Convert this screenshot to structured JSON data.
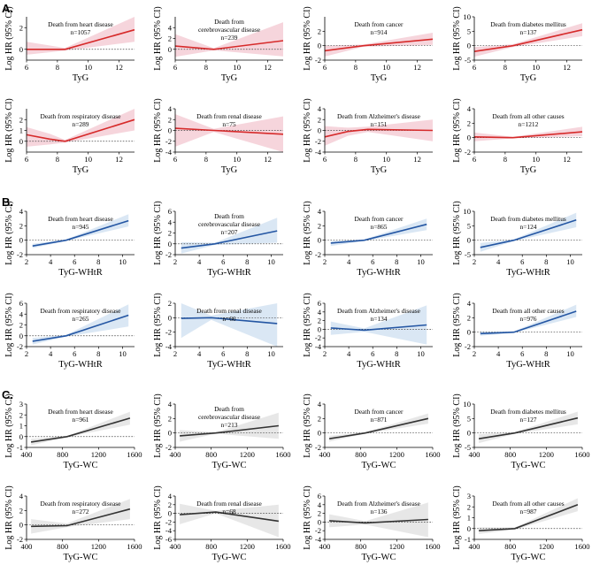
{
  "figure": {
    "section_labels": [
      "A.",
      "B.",
      "C."
    ],
    "y_label": "Log HR (95% CI)"
  },
  "chart_data": [
    {
      "section": "A.",
      "type": "line",
      "x_label": "TyG",
      "xlim": [
        6,
        13
      ],
      "x_ticks": [
        6,
        8,
        10,
        12
      ],
      "line_color": "#d62a2a",
      "band_color": "#f6d3da",
      "panels": [
        {
          "title": [
            "Death from heart disease",
            "n=1057"
          ],
          "ylim": [
            -1,
            3
          ],
          "y_ticks": [
            0,
            2
          ],
          "x": [
            6,
            8.5,
            13
          ],
          "y": [
            0,
            0,
            1.8
          ],
          "lower": [
            -0.5,
            -0.12,
            0.7
          ],
          "upper": [
            0.7,
            0.12,
            3.0
          ]
        },
        {
          "title": [
            "Death from",
            "cerebrovascular disease",
            "n=239"
          ],
          "ylim": [
            -2,
            6
          ],
          "y_ticks": [
            0,
            2,
            4
          ],
          "x": [
            6,
            8.5,
            13
          ],
          "y": [
            0.6,
            0,
            1.6
          ],
          "lower": [
            -1.4,
            -0.2,
            -1.3
          ],
          "upper": [
            2.8,
            0.2,
            5.0
          ]
        },
        {
          "title": [
            "Death from cancer",
            "n=914"
          ],
          "ylim": [
            -2,
            4
          ],
          "y_ticks": [
            -2,
            0,
            2
          ],
          "x": [
            6,
            8.5,
            13
          ],
          "y": [
            -0.7,
            0,
            0.9
          ],
          "lower": [
            -1.5,
            -0.15,
            0.1
          ],
          "upper": [
            0,
            0.15,
            1.8
          ]
        },
        {
          "title": [
            "Death from diabetes mellitus",
            "n=137"
          ],
          "ylim": [
            -5,
            10
          ],
          "y_ticks": [
            -5,
            0,
            5,
            10
          ],
          "x": [
            6,
            8.5,
            13
          ],
          "y": [
            -2,
            0,
            5.5
          ],
          "lower": [
            -3.8,
            -0.5,
            3.3
          ],
          "upper": [
            -0.5,
            0.5,
            7.8
          ]
        },
        {
          "title": [
            "Death from respiratory disease",
            "n=289"
          ],
          "ylim": [
            -1,
            3
          ],
          "y_ticks": [
            0,
            1,
            2
          ],
          "x": [
            6,
            7.5,
            8.5,
            13
          ],
          "y": [
            0.6,
            0.2,
            0,
            2.0
          ],
          "lower": [
            -0.5,
            -0.3,
            -0.12,
            1.0
          ],
          "upper": [
            1.3,
            0.7,
            0.12,
            3.0
          ]
        },
        {
          "title": [
            "Death from renal disease",
            "n=75"
          ],
          "ylim": [
            -4,
            4
          ],
          "y_ticks": [
            -4,
            -2,
            0,
            2,
            4
          ],
          "x": [
            6,
            8.5,
            13
          ],
          "y": [
            0.4,
            0,
            -0.7
          ],
          "lower": [
            -3.0,
            -0.3,
            -4.0
          ],
          "upper": [
            3.0,
            0.3,
            2.6
          ]
        },
        {
          "title": [
            "Death from Alzheimer's disease",
            "n=151"
          ],
          "ylim": [
            -4,
            4
          ],
          "y_ticks": [
            -4,
            -2,
            0,
            2,
            4
          ],
          "x": [
            6,
            7.5,
            8.8,
            13
          ],
          "y": [
            -1.2,
            -0.2,
            0.2,
            0
          ],
          "lower": [
            -2.8,
            -1.0,
            -0.3,
            -2.0
          ],
          "upper": [
            0.8,
            0.5,
            0.7,
            2.0
          ]
        },
        {
          "title": [
            "Death from all other causes",
            "n=1212"
          ],
          "ylim": [
            -2,
            4
          ],
          "y_ticks": [
            -2,
            0,
            2,
            4
          ],
          "x": [
            6,
            8.5,
            13
          ],
          "y": [
            0.1,
            0,
            0.8
          ],
          "lower": [
            -0.5,
            -0.1,
            0.2
          ],
          "upper": [
            0.7,
            0.1,
            1.5
          ]
        }
      ]
    },
    {
      "section": "B.",
      "type": "line",
      "x_label": "TyG-WHtR",
      "xlim": [
        2,
        11
      ],
      "x_ticks": [
        2,
        4,
        6,
        8,
        10
      ],
      "line_color": "#2456a3",
      "band_color": "#d8e6f3",
      "panels": [
        {
          "title": [
            "Death from heart disease",
            "n=945"
          ],
          "ylim": [
            -2,
            4
          ],
          "y_ticks": [
            -2,
            0,
            2,
            4
          ],
          "x": [
            2.5,
            5.3,
            10.5
          ],
          "y": [
            -0.8,
            0,
            2.7
          ],
          "lower": [
            -1.1,
            -0.1,
            1.9
          ],
          "upper": [
            -0.5,
            0.1,
            3.6
          ]
        },
        {
          "title": [
            "Death from",
            "cerebrovascular disease",
            "n=207"
          ],
          "ylim": [
            -2,
            6
          ],
          "y_ticks": [
            -2,
            0,
            2,
            4,
            6
          ],
          "x": [
            2.5,
            5.3,
            10.5
          ],
          "y": [
            -0.8,
            0,
            2.4
          ],
          "lower": [
            -1.8,
            -0.2,
            0.2
          ],
          "upper": [
            0.3,
            0.2,
            4.8
          ]
        },
        {
          "title": [
            "Death from cancer",
            "n=865"
          ],
          "ylim": [
            -2,
            4
          ],
          "y_ticks": [
            -2,
            0,
            2,
            4
          ],
          "x": [
            2.5,
            5.3,
            10.5
          ],
          "y": [
            -0.4,
            0,
            2.2
          ],
          "lower": [
            -0.8,
            -0.1,
            1.4
          ],
          "upper": [
            -0.1,
            0.1,
            3.0
          ]
        },
        {
          "title": [
            "Death from diabetes mellitus",
            "n=124"
          ],
          "ylim": [
            -5,
            10
          ],
          "y_ticks": [
            -5,
            0,
            5,
            10
          ],
          "x": [
            2.5,
            5.3,
            10.5
          ],
          "y": [
            -2.5,
            0,
            7.0
          ],
          "lower": [
            -4.0,
            -0.3,
            4.5
          ],
          "upper": [
            -1.0,
            0.3,
            9.5
          ]
        },
        {
          "title": [
            "Death from respiratory disease",
            "n=265"
          ],
          "ylim": [
            -2,
            6
          ],
          "y_ticks": [
            -2,
            0,
            2,
            4,
            6
          ],
          "x": [
            2.5,
            5.3,
            10.5
          ],
          "y": [
            -1.0,
            0,
            3.8
          ],
          "lower": [
            -1.6,
            -0.15,
            1.7
          ],
          "upper": [
            -0.4,
            0.15,
            5.8
          ]
        },
        {
          "title": [
            "Death from renal disease",
            "n=66"
          ],
          "ylim": [
            -4,
            2
          ],
          "y_ticks": [
            -4,
            -2,
            0,
            2
          ],
          "x": [
            2.5,
            5.0,
            10.5
          ],
          "y": [
            -0.1,
            0,
            -0.8
          ],
          "lower": [
            -2.8,
            -0.3,
            -4.0
          ],
          "upper": [
            2.0,
            0.3,
            2.0
          ]
        },
        {
          "title": [
            "Death from Alzheimer's disease",
            "n=134"
          ],
          "ylim": [
            -4,
            6
          ],
          "y_ticks": [
            -4,
            -2,
            0,
            2,
            4,
            6
          ],
          "x": [
            2.5,
            5.3,
            10.5
          ],
          "y": [
            0.3,
            -0.2,
            1.0
          ],
          "lower": [
            -1.3,
            -0.6,
            -3.5
          ],
          "upper": [
            1.8,
            0.2,
            5.5
          ]
        },
        {
          "title": [
            "Death from all other causes",
            "n=976"
          ],
          "ylim": [
            -2,
            4
          ],
          "y_ticks": [
            -2,
            0,
            2,
            4
          ],
          "x": [
            2.5,
            5.3,
            10.5
          ],
          "y": [
            -0.2,
            0,
            2.9
          ],
          "lower": [
            -0.5,
            -0.1,
            2.1
          ],
          "upper": [
            0.1,
            0.1,
            3.8
          ]
        }
      ]
    },
    {
      "section": "C.",
      "type": "line",
      "x_label": "TyG-WC",
      "xlim": [
        400,
        1600
      ],
      "x_ticks": [
        400,
        800,
        1200,
        1600
      ],
      "line_color": "#333333",
      "band_color": "#e6e6e6",
      "panels": [
        {
          "title": [
            "Death from heart disease",
            "n=961"
          ],
          "ylim": [
            -1,
            3
          ],
          "y_ticks": [
            -1,
            0,
            1,
            2,
            3
          ],
          "x": [
            450,
            850,
            1550
          ],
          "y": [
            -0.5,
            0,
            1.7
          ],
          "lower": [
            -0.8,
            -0.05,
            1.1
          ],
          "upper": [
            -0.2,
            0.05,
            2.3
          ]
        },
        {
          "title": [
            "Death from",
            "cerebrovascular disease",
            "n=213"
          ],
          "ylim": [
            -2,
            4
          ],
          "y_ticks": [
            -2,
            0,
            2,
            4
          ],
          "x": [
            450,
            850,
            1550
          ],
          "y": [
            -0.4,
            0,
            1.0
          ],
          "lower": [
            -1.2,
            -0.1,
            -0.8
          ],
          "upper": [
            0.4,
            0.1,
            2.8
          ]
        },
        {
          "title": [
            "Death from cancer",
            "n=871"
          ],
          "ylim": [
            -2,
            4
          ],
          "y_ticks": [
            -2,
            0,
            2,
            4
          ],
          "x": [
            450,
            850,
            1550
          ],
          "y": [
            -0.8,
            0,
            2.0
          ],
          "lower": [
            -1.2,
            -0.1,
            1.3
          ],
          "upper": [
            -0.4,
            0.1,
            2.7
          ]
        },
        {
          "title": [
            "Death from diabetes mellitus",
            "n=127"
          ],
          "ylim": [
            -5,
            10
          ],
          "y_ticks": [
            -5,
            0,
            5,
            10
          ],
          "x": [
            450,
            850,
            1550
          ],
          "y": [
            -2.0,
            0,
            5.2
          ],
          "lower": [
            -3.5,
            -0.3,
            3.0
          ],
          "upper": [
            -0.5,
            0.3,
            7.4
          ]
        },
        {
          "title": [
            "Death from respiratory disease",
            "n=272"
          ],
          "ylim": [
            -2,
            4
          ],
          "y_ticks": [
            -2,
            0,
            2,
            4
          ],
          "x": [
            450,
            850,
            1550
          ],
          "y": [
            -0.2,
            -0.1,
            2.2
          ],
          "lower": [
            -1.2,
            -0.3,
            0.8
          ],
          "upper": [
            0.8,
            0.2,
            3.6
          ]
        },
        {
          "title": [
            "Death from renal disease",
            "n=68"
          ],
          "ylim": [
            -6,
            4
          ],
          "y_ticks": [
            -6,
            -4,
            -2,
            0,
            2,
            4
          ],
          "x": [
            450,
            850,
            1550
          ],
          "y": [
            -0.3,
            0.3,
            -1.8
          ],
          "lower": [
            -2.5,
            0,
            -5.5
          ],
          "upper": [
            2.2,
            0.6,
            2.0
          ]
        },
        {
          "title": [
            "Death from Alzheimer's disease",
            "n=136"
          ],
          "ylim": [
            -4,
            6
          ],
          "y_ticks": [
            -4,
            -2,
            0,
            2,
            4,
            6
          ],
          "x": [
            450,
            850,
            1550
          ],
          "y": [
            0.3,
            -0.2,
            0.6
          ],
          "lower": [
            -1.2,
            -0.6,
            -3.5
          ],
          "upper": [
            1.8,
            0.2,
            4.5
          ]
        },
        {
          "title": [
            "Death from all other causes",
            "n=987"
          ],
          "ylim": [
            -1,
            3
          ],
          "y_ticks": [
            -1,
            0,
            1,
            2,
            3
          ],
          "x": [
            450,
            850,
            1550
          ],
          "y": [
            -0.2,
            0,
            2.2
          ],
          "lower": [
            -0.5,
            -0.1,
            1.6
          ],
          "upper": [
            0.1,
            0.1,
            2.8
          ]
        }
      ]
    }
  ]
}
